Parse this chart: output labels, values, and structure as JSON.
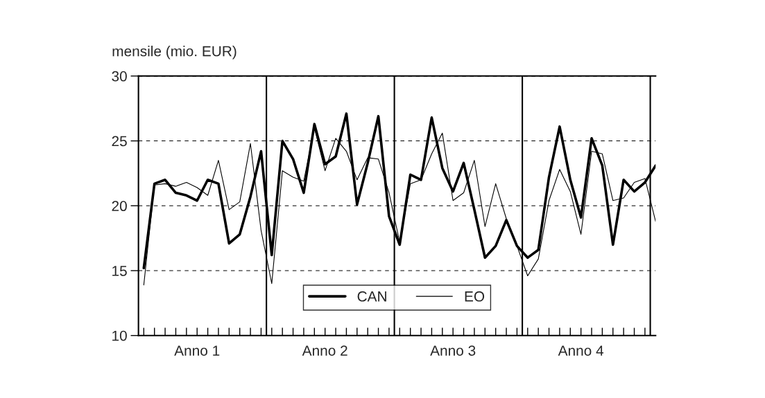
{
  "chart_data": {
    "type": "line",
    "ylabel": "mensile (mio. EUR)",
    "categories": [
      null,
      null,
      null,
      null,
      null,
      "Anno 1",
      null,
      null,
      null,
      null,
      null,
      null,
      null,
      null,
      null,
      null,
      null,
      "Anno 2",
      null,
      null,
      null,
      null,
      null,
      null,
      null,
      null,
      null,
      null,
      null,
      "Anno 3",
      null,
      null,
      null,
      null,
      null,
      null,
      null,
      null,
      null,
      null,
      null,
      "Anno 4",
      null,
      null,
      null,
      null,
      null,
      null,
      null
    ],
    "series": [
      {
        "name": "CAN",
        "color": "#000000",
        "values": [
          15.2,
          21.7,
          22.0,
          21.0,
          20.8,
          20.4,
          22.0,
          21.7,
          17.1,
          17.8,
          20.7,
          24.2,
          16.2,
          25.0,
          23.6,
          21.0,
          26.3,
          23.2,
          23.8,
          27.1,
          20.1,
          23.3,
          26.9,
          19.2,
          17.0,
          22.4,
          22.0,
          26.8,
          22.9,
          21.1,
          23.3,
          19.7,
          16.0,
          16.9,
          18.9,
          16.9,
          16.0,
          16.6,
          22.2,
          26.1,
          22.0,
          19.1,
          25.2,
          23.1,
          17.0,
          22.0,
          21.1,
          21.8,
          23.1
        ]
      },
      {
        "name": "EO",
        "color": "#000000",
        "values": [
          13.9,
          21.6,
          21.7,
          21.5,
          21.8,
          21.4,
          20.8,
          23.5,
          19.7,
          20.3,
          24.8,
          18.1,
          14.0,
          22.7,
          22.2,
          21.9,
          26.0,
          22.7,
          25.2,
          24.2,
          22.0,
          23.7,
          23.6,
          21.0,
          17.2,
          21.7,
          22.0,
          24.0,
          25.6,
          20.4,
          21.0,
          23.5,
          18.4,
          21.7,
          19.0,
          16.9,
          14.6,
          15.9,
          20.4,
          22.8,
          21.1,
          17.8,
          24.2,
          24.0,
          20.4,
          20.6,
          21.8,
          22.1,
          18.8
        ]
      }
    ],
    "ylim": [
      10,
      30
    ],
    "yticks": [
      10,
      15,
      20,
      25,
      30
    ],
    "grid": "y",
    "legend": "bottom",
    "line_style": "solid",
    "marker": "none"
  }
}
